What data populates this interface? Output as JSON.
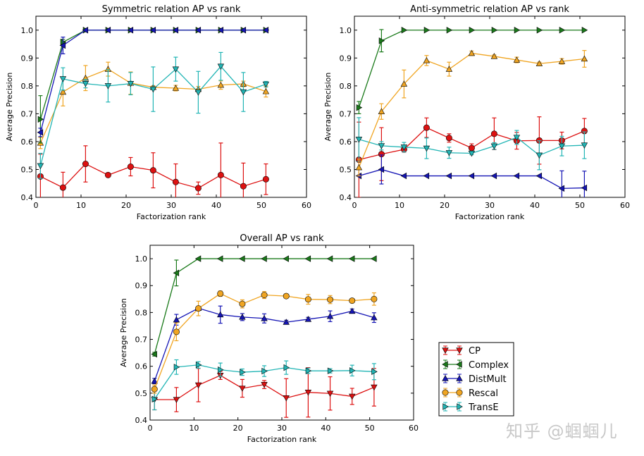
{
  "series_styles": {
    "CP": {
      "color": "#dd1111"
    },
    "Complex": {
      "color": "#1a7a1a"
    },
    "DistMult": {
      "color": "#1515b5"
    },
    "Rescal": {
      "color": "#f0a522"
    },
    "TransE": {
      "color": "#22b5b5"
    }
  },
  "legend": {
    "placement": "bottom-right (outside third chart)",
    "entries": [
      {
        "name": "CP",
        "marker": "triangle-down"
      },
      {
        "name": "Complex",
        "marker": "triangle-left"
      },
      {
        "name": "DistMult",
        "marker": "triangle-up"
      },
      {
        "name": "Rescal",
        "marker": "circle"
      },
      {
        "name": "TransE",
        "marker": "triangle-right"
      }
    ]
  },
  "watermark": "知乎 @蝈蝈儿",
  "chart_data": [
    {
      "type": "line",
      "title": "Symmetric relation AP vs rank",
      "xlabel": "Factorization rank",
      "ylabel": "Average Precision",
      "xlim": [
        0,
        60
      ],
      "ylim": [
        0.4,
        1.05
      ],
      "xticks": [
        "0",
        "10",
        "20",
        "30",
        "40",
        "50",
        "60"
      ],
      "yticks": [
        "0.4",
        "0.5",
        "0.6",
        "0.7",
        "0.8",
        "0.9",
        "1.0"
      ],
      "grid": false,
      "x": [
        1,
        6,
        11,
        16,
        21,
        26,
        31,
        36,
        41,
        46,
        51
      ],
      "series": [
        {
          "name": "CP",
          "marker": "circle",
          "values": [
            0.475,
            0.435,
            0.52,
            0.48,
            0.51,
            0.497,
            0.455,
            0.433,
            0.48,
            0.44,
            0.465
          ],
          "errors": [
            0.08,
            0.055,
            0.065,
            0.005,
            0.033,
            0.063,
            0.065,
            0.022,
            0.115,
            0.083,
            0.055
          ]
        },
        {
          "name": "Rescal",
          "marker": "triangle-up",
          "values": [
            0.595,
            0.778,
            0.828,
            0.86,
            0.81,
            0.795,
            0.792,
            0.788,
            0.803,
            0.807,
            0.78
          ],
          "errors": [
            0.02,
            0.05,
            0.045,
            0.025,
            0.04,
            0.005,
            0.01,
            0.01,
            0.015,
            0.01,
            0.02
          ]
        },
        {
          "name": "TransE",
          "marker": "triangle-down",
          "values": [
            0.513,
            0.825,
            0.808,
            0.8,
            0.808,
            0.788,
            0.86,
            0.777,
            0.87,
            0.778,
            0.806
          ],
          "errors": [
            0.045,
            0.04,
            0.015,
            0.058,
            0.04,
            0.08,
            0.043,
            0.075,
            0.05,
            0.07,
            0.01
          ]
        },
        {
          "name": "Complex",
          "marker": "triangle-right",
          "values": [
            0.68,
            0.957,
            1,
            1,
            1,
            1,
            1,
            1,
            1,
            1,
            1
          ],
          "errors": [
            0.085,
            0.01,
            0,
            0,
            0,
            0,
            0,
            0,
            0,
            0,
            0
          ]
        },
        {
          "name": "DistMult",
          "marker": "triangle-left",
          "values": [
            0.633,
            0.945,
            1,
            1,
            1,
            1,
            1,
            1,
            1,
            1,
            1
          ],
          "errors": [
            0.015,
            0.03,
            0,
            0,
            0,
            0,
            0,
            0,
            0,
            0,
            0
          ]
        }
      ]
    },
    {
      "type": "line",
      "title": "Anti-symmetric relation AP vs rank",
      "xlabel": "Factorization rank",
      "ylabel": "Average Precision",
      "xlim": [
        0,
        60
      ],
      "ylim": [
        0.4,
        1.05
      ],
      "xticks": [
        "0",
        "10",
        "20",
        "30",
        "40",
        "50",
        "60"
      ],
      "yticks": [
        "0.4",
        "0.5",
        "0.6",
        "0.7",
        "0.8",
        "0.9",
        "1.0"
      ],
      "grid": false,
      "x": [
        1,
        6,
        11,
        16,
        21,
        26,
        31,
        36,
        41,
        46,
        51
      ],
      "series": [
        {
          "name": "CP",
          "marker": "circle",
          "values": [
            0.535,
            0.555,
            0.572,
            0.65,
            0.613,
            0.577,
            0.628,
            0.603,
            0.604,
            0.604,
            0.638
          ],
          "errors": [
            0.135,
            0.095,
            0.01,
            0.035,
            0.015,
            0.015,
            0.057,
            0.03,
            0.085,
            0.03,
            0.045
          ]
        },
        {
          "name": "TransE",
          "marker": "triangle-down",
          "values": [
            0.608,
            0.585,
            0.58,
            0.576,
            0.56,
            0.558,
            0.584,
            0.615,
            0.551,
            0.584,
            0.587
          ],
          "errors": [
            0.078,
            0.015,
            0.017,
            0.037,
            0.02,
            0.005,
            0.012,
            0.025,
            0.052,
            0.035,
            0.048
          ]
        },
        {
          "name": "DistMult",
          "marker": "triangle-left",
          "values": [
            0.477,
            0.5,
            0.477,
            0.477,
            0.477,
            0.477,
            0.477,
            0.477,
            0.477,
            0.432,
            0.434
          ],
          "errors": [
            0,
            0.052,
            0,
            0,
            0,
            0,
            0,
            0,
            0,
            0.063,
            0.06
          ]
        },
        {
          "name": "Rescal",
          "marker": "triangle-up",
          "values": [
            0.507,
            0.708,
            0.807,
            0.891,
            0.86,
            0.917,
            0.906,
            0.893,
            0.88,
            0.888,
            0.897
          ],
          "errors": [
            0.03,
            0.028,
            0.05,
            0.018,
            0.025,
            0.008,
            0.005,
            0.01,
            0.005,
            0.01,
            0.03
          ]
        },
        {
          "name": "Complex",
          "marker": "triangle-right",
          "values": [
            0.722,
            0.962,
            1,
            1,
            1,
            1,
            1,
            1,
            1,
            1,
            1
          ],
          "errors": [
            0.022,
            0.04,
            0,
            0,
            0,
            0,
            0,
            0,
            0,
            0,
            0
          ]
        }
      ]
    },
    {
      "type": "line",
      "title": "Overall AP vs rank",
      "xlabel": "Factorization rank",
      "ylabel": "Average Precision",
      "xlim": [
        0,
        60
      ],
      "ylim": [
        0.4,
        1.05
      ],
      "xticks": [
        "0",
        "10",
        "20",
        "30",
        "40",
        "50",
        "60"
      ],
      "yticks": [
        "0.4",
        "0.5",
        "0.6",
        "0.7",
        "0.8",
        "0.9",
        "1.0"
      ],
      "grid": false,
      "x": [
        1,
        6,
        11,
        16,
        21,
        26,
        31,
        36,
        41,
        46,
        51
      ],
      "series": [
        {
          "name": "CP",
          "marker": "triangle-down",
          "values": [
            0.476,
            0.476,
            0.53,
            0.566,
            0.518,
            0.532,
            0.482,
            0.503,
            0.499,
            0.488,
            0.522
          ],
          "errors": [
            0.038,
            0.045,
            0.062,
            0.015,
            0.033,
            0.015,
            0.072,
            0.092,
            0.062,
            0.03,
            0.07
          ]
        },
        {
          "name": "TransE",
          "marker": "triangle-right",
          "values": [
            0.478,
            0.597,
            0.605,
            0.587,
            0.578,
            0.582,
            0.595,
            0.583,
            0.583,
            0.584,
            0.58
          ],
          "errors": [
            0.04,
            0.027,
            0.012,
            0.025,
            0.012,
            0.02,
            0.025,
            0.01,
            0.008,
            0.02,
            0.03
          ]
        },
        {
          "name": "DistMult",
          "marker": "triangle-up",
          "values": [
            0.545,
            0.773,
            0.816,
            0.792,
            0.783,
            0.778,
            0.764,
            0.775,
            0.786,
            0.805,
            0.781
          ],
          "errors": [
            0.01,
            0.02,
            0.005,
            0.032,
            0.013,
            0.017,
            0.007,
            0.007,
            0.02,
            0.008,
            0.018
          ]
        },
        {
          "name": "Rescal",
          "marker": "circle",
          "values": [
            0.515,
            0.728,
            0.815,
            0.87,
            0.832,
            0.865,
            0.861,
            0.849,
            0.848,
            0.844,
            0.85
          ],
          "errors": [
            0.015,
            0.033,
            0.027,
            0.01,
            0.015,
            0.013,
            0.005,
            0.018,
            0.015,
            0.005,
            0.023
          ]
        },
        {
          "name": "Complex",
          "marker": "triangle-left",
          "values": [
            0.645,
            0.947,
            1,
            1,
            1,
            1,
            1,
            1,
            1,
            1,
            1
          ],
          "errors": [
            0.007,
            0.048,
            0,
            0,
            0,
            0,
            0,
            0,
            0,
            0,
            0
          ]
        }
      ]
    }
  ]
}
